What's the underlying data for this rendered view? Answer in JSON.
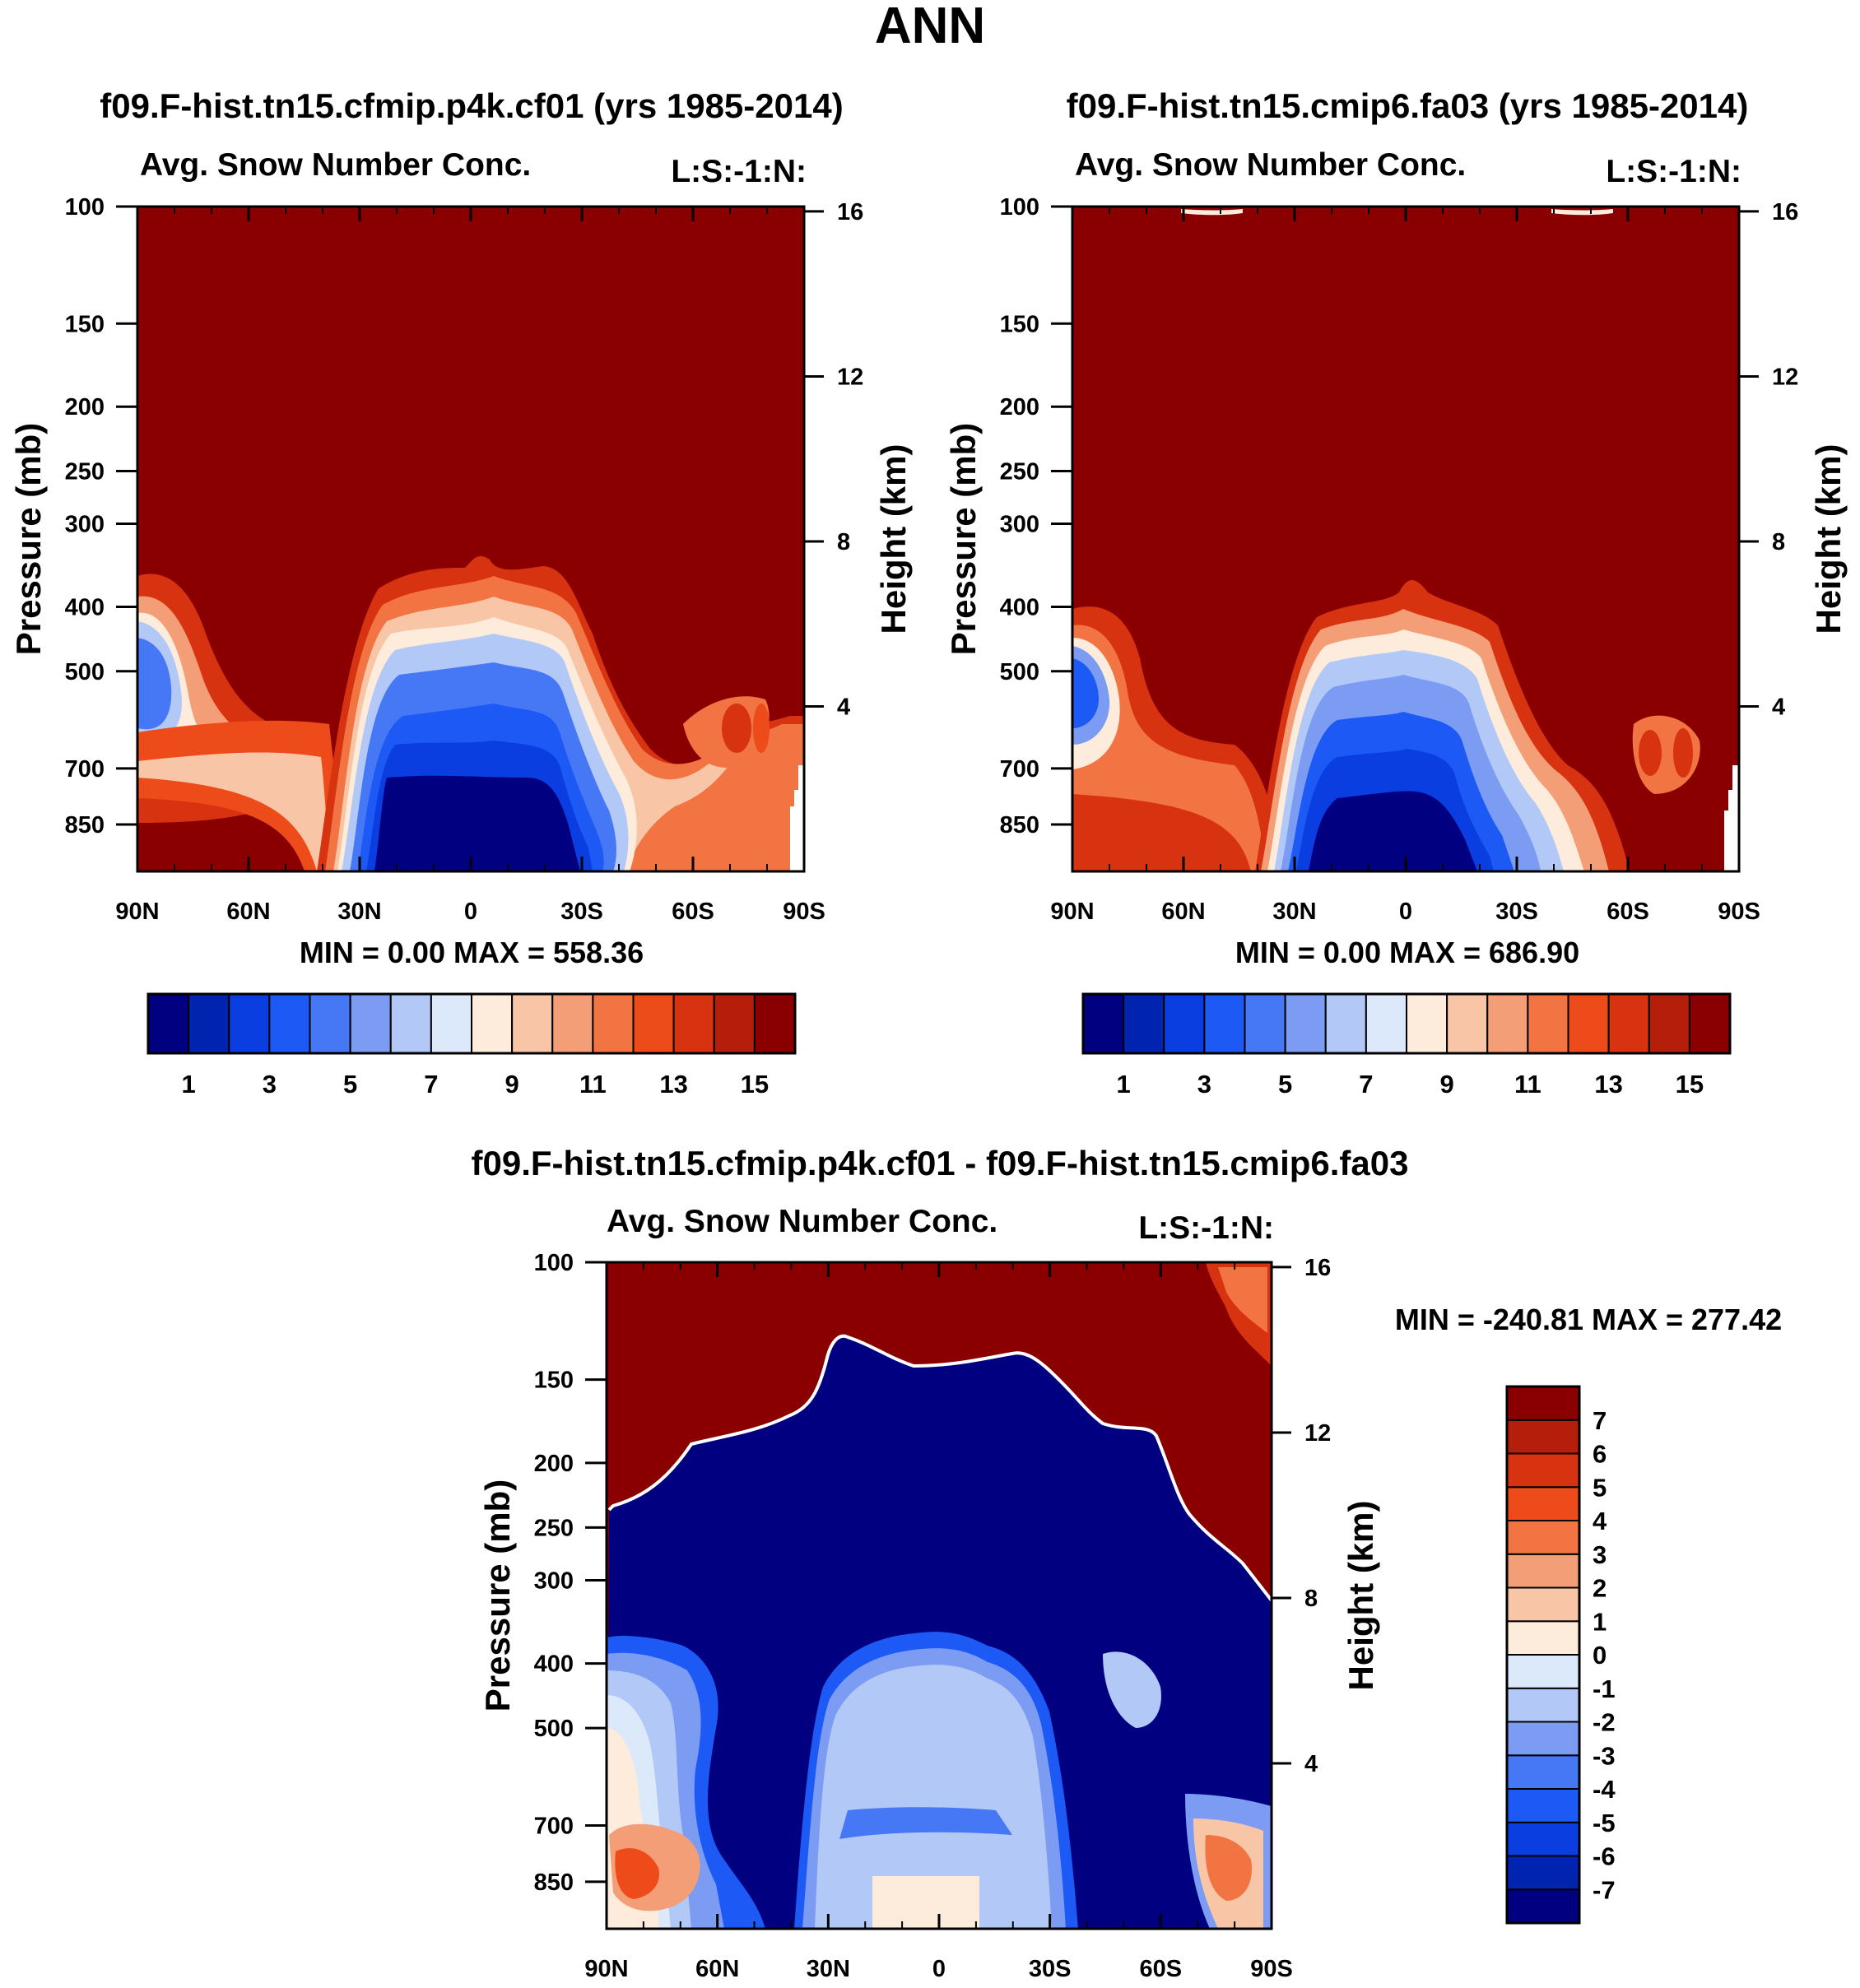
{
  "figure_title": "ANN",
  "colors": {
    "bwr16": [
      "#000080",
      "#0023b0",
      "#0a3ee0",
      "#1d5af5",
      "#4677f5",
      "#7b9cf2",
      "#b2c9f8",
      "#dbe9fb",
      "#fdecdc",
      "#f8c6a6",
      "#f49e78",
      "#f27443",
      "#ee4b1b",
      "#d83311",
      "#b51e0a",
      "#8a0000"
    ],
    "frame": "#000000",
    "background": "#ffffff"
  },
  "chart_data": [
    {
      "id": "panel-cf01",
      "type": "heatmap",
      "panel_title": "f09.F-hist.tn15.cfmip.p4k.cf01 (yrs 1985-2014)",
      "left_label": "Avg. Snow Number Conc.",
      "right_label": "L:S:-1:N:",
      "ylabel": "Pressure (mb)",
      "y2label": "Height (km)",
      "xticks": [
        "90N",
        "60N",
        "30N",
        "0",
        "30S",
        "60S",
        "90S"
      ],
      "yticks": [
        "100",
        "150",
        "200",
        "250",
        "300",
        "400",
        "500",
        "700",
        "850"
      ],
      "y2ticks": [
        "16",
        "12",
        "8",
        "4"
      ],
      "stats": "MIN =    0.00   MAX = 558.36",
      "colorbar_levels": [
        "1",
        "3",
        "5",
        "7",
        "9",
        "11",
        "13",
        "15"
      ],
      "ylim_mb": [
        100,
        1000
      ]
    },
    {
      "id": "panel-fa03",
      "type": "heatmap",
      "panel_title": "f09.F-hist.tn15.cmip6.fa03 (yrs 1985-2014)",
      "left_label": "Avg. Snow Number Conc.",
      "right_label": "L:S:-1:N:",
      "ylabel": "Pressure (mb)",
      "y2label": "Height (km)",
      "xticks": [
        "90N",
        "60N",
        "30N",
        "0",
        "30S",
        "60S",
        "90S"
      ],
      "yticks": [
        "100",
        "150",
        "200",
        "250",
        "300",
        "400",
        "500",
        "700",
        "850"
      ],
      "y2ticks": [
        "16",
        "12",
        "8",
        "4"
      ],
      "stats": "MIN =    0.00   MAX = 686.90",
      "colorbar_levels": [
        "1",
        "3",
        "5",
        "7",
        "9",
        "11",
        "13",
        "15"
      ],
      "ylim_mb": [
        100,
        1000
      ]
    },
    {
      "id": "panel-diff",
      "type": "heatmap",
      "panel_title": "f09.F-hist.tn15.cfmip.p4k.cf01 - f09.F-hist.tn15.cmip6.fa03",
      "left_label": "Avg. Snow Number Conc.",
      "right_label": "L:S:-1:N:",
      "ylabel": "Pressure (mb)",
      "y2label": "Height (km)",
      "xticks": [
        "90N",
        "60N",
        "30N",
        "0",
        "30S",
        "60S",
        "90S"
      ],
      "yticks": [
        "100",
        "150",
        "200",
        "250",
        "300",
        "400",
        "500",
        "700",
        "850"
      ],
      "y2ticks": [
        "16",
        "12",
        "8",
        "4"
      ],
      "stats": "MIN = -240.81   MAX = 277.42",
      "colorbar_levels": [
        "7",
        "6",
        "5",
        "4",
        "3",
        "2",
        "1",
        "0",
        "-1",
        "-2",
        "-3",
        "-4",
        "-5",
        "-6",
        "-7"
      ],
      "ylim_mb": [
        100,
        1000
      ]
    }
  ]
}
